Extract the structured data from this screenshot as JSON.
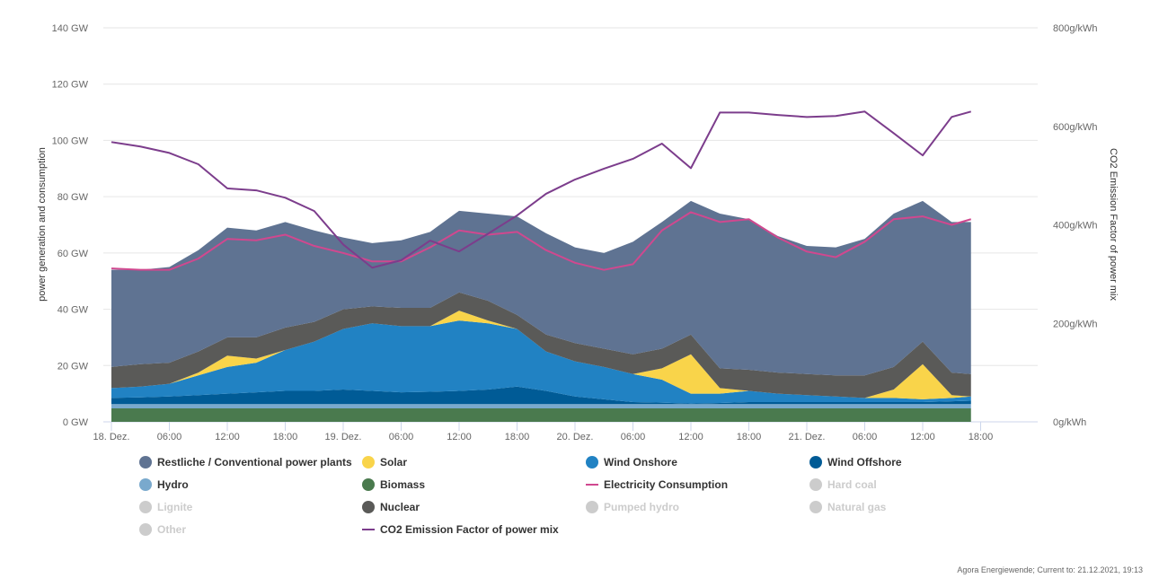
{
  "chart_data": {
    "type": "area",
    "stacked": true,
    "xlabel": "",
    "ylabel": "power generation and consumption",
    "y2label": "CO2 Emission Factor of power mix",
    "ylim": [
      0,
      140
    ],
    "y2lim": [
      0,
      800
    ],
    "grid": true,
    "legend_position": "bottom",
    "y_ticks": [
      "0 GW",
      "20 GW",
      "40 GW",
      "60 GW",
      "80 GW",
      "100 GW",
      "120 GW",
      "140 GW"
    ],
    "y2_ticks": [
      "0g/kWh",
      "200g/kWh",
      "400g/kWh",
      "600g/kWh",
      "800g/kWh"
    ],
    "x_ticks": [
      "18. Dez.",
      "06:00",
      "12:00",
      "18:00",
      "19. Dez.",
      "06:00",
      "12:00",
      "18:00",
      "20. Dez.",
      "06:00",
      "12:00",
      "18:00",
      "21. Dez.",
      "06:00",
      "12:00",
      "18:00"
    ],
    "x_hours": [
      0,
      3,
      6,
      9,
      12,
      15,
      18,
      21,
      24,
      27,
      30,
      33,
      36,
      39,
      42,
      45,
      48,
      51,
      54,
      57,
      60,
      63,
      66,
      69,
      72,
      75,
      78,
      81,
      84,
      87,
      89
    ],
    "series": [
      {
        "name": "Biomass",
        "color": "#4a7a4e",
        "values": [
          4.8,
          4.8,
          4.8,
          4.8,
          4.8,
          4.8,
          4.8,
          4.8,
          4.8,
          4.8,
          4.8,
          4.8,
          4.8,
          4.8,
          4.8,
          4.8,
          4.8,
          4.8,
          4.8,
          4.8,
          4.8,
          4.8,
          4.8,
          4.8,
          4.8,
          4.8,
          4.8,
          4.8,
          4.8,
          4.8,
          4.8
        ]
      },
      {
        "name": "Hydro",
        "color": "#79a9cd",
        "values": [
          1.5,
          1.5,
          1.5,
          1.5,
          1.5,
          1.5,
          1.5,
          1.5,
          1.5,
          1.5,
          1.5,
          1.5,
          1.5,
          1.5,
          1.5,
          1.5,
          1.5,
          1.5,
          1.5,
          1.5,
          1.5,
          1.5,
          1.5,
          1.5,
          1.5,
          1.5,
          1.5,
          1.5,
          1.5,
          1.5,
          1.5
        ]
      },
      {
        "name": "Wind Offshore",
        "color": "#005b96",
        "values": [
          2.2,
          2.4,
          2.7,
          3.2,
          3.7,
          4.2,
          4.7,
          4.7,
          5.2,
          4.7,
          4.2,
          4.4,
          4.7,
          5.2,
          6.2,
          4.7,
          2.7,
          1.7,
          0.7,
          0.5,
          0.2,
          0.4,
          0.7,
          0.7,
          0.7,
          0.7,
          0.7,
          0.7,
          0.7,
          1.0,
          1.2
        ]
      },
      {
        "name": "Wind Onshore",
        "color": "#2182c3",
        "values": [
          3.5,
          3.8,
          4.5,
          7.0,
          9.5,
          10.5,
          14.5,
          17.5,
          21.5,
          24,
          23.5,
          23.3,
          25,
          23.5,
          20.5,
          14,
          12.5,
          11.5,
          10,
          8.2,
          3.5,
          3.3,
          4,
          3,
          2.5,
          2,
          1.5,
          1.5,
          1,
          1.2,
          1.5
        ]
      },
      {
        "name": "Solar",
        "color": "#f9d44a",
        "values": [
          0,
          0,
          0,
          1,
          4,
          1.5,
          0,
          0,
          0,
          0,
          0,
          0,
          3.5,
          1,
          0,
          0,
          0,
          0,
          0,
          4,
          14,
          2,
          0,
          0,
          0,
          0,
          0,
          3,
          12.5,
          1,
          0
        ]
      },
      {
        "name": "Nuclear",
        "color": "#5a5a58",
        "values": [
          7.5,
          8,
          7.5,
          7.5,
          6.5,
          7.5,
          8,
          7,
          7,
          6,
          6.5,
          6.5,
          6.5,
          7,
          5,
          6,
          6.5,
          6.5,
          7,
          7,
          7,
          7,
          7.5,
          7.5,
          7.5,
          7.5,
          8,
          8,
          8,
          8,
          8
        ]
      },
      {
        "name": "Restliche / Conventional power plants",
        "color": "#5f7392",
        "values": [
          34.5,
          33.5,
          34,
          36,
          39,
          38,
          37.5,
          32.5,
          25.5,
          22.5,
          24,
          27,
          29,
          31,
          35,
          36,
          34,
          34,
          40,
          45,
          47.5,
          55,
          53.5,
          48.5,
          45.5,
          45.5,
          48.5,
          54.5,
          50,
          53.5,
          54
        ]
      }
    ],
    "lines": [
      {
        "name": "Electricity Consumption",
        "color": "#d0488f",
        "axis": "left",
        "values": [
          54.5,
          54,
          54,
          58,
          65,
          64.5,
          66.5,
          62.5,
          60,
          57,
          57,
          62,
          68,
          66.5,
          67.5,
          61,
          56.5,
          54,
          56,
          68,
          74.5,
          71,
          72,
          65.5,
          60.5,
          58.5,
          64,
          72,
          73,
          70,
          72
        ]
      },
      {
        "name": "CO2 Emission Factor of power mix",
        "color": "#7c3d8c",
        "axis": "right",
        "values": [
          568,
          559,
          546,
          523,
          474,
          470,
          455,
          428,
          360,
          313,
          328,
          368,
          346,
          382,
          419,
          463,
          492,
          514,
          534,
          565,
          515,
          628,
          628,
          623,
          619,
          621,
          630,
          586,
          541,
          619,
          630
        ]
      }
    ]
  },
  "legend": [
    {
      "label": "Restliche / Conventional power plants",
      "color": "#5f7392",
      "kind": "dot",
      "active": true
    },
    {
      "label": "Solar",
      "color": "#f9d44a",
      "kind": "dot",
      "active": true
    },
    {
      "label": "Wind Onshore",
      "color": "#2182c3",
      "kind": "dot",
      "active": true
    },
    {
      "label": "Wind Offshore",
      "color": "#005b96",
      "kind": "dot",
      "active": true
    },
    {
      "label": "Hydro",
      "color": "#79a9cd",
      "kind": "dot",
      "active": true
    },
    {
      "label": "Biomass",
      "color": "#4a7a4e",
      "kind": "dot",
      "active": true
    },
    {
      "label": "Electricity Consumption",
      "color": "#d0488f",
      "kind": "line",
      "active": true
    },
    {
      "label": "Hard coal",
      "color": "#cccccc",
      "kind": "dot",
      "active": false
    },
    {
      "label": "Lignite",
      "color": "#cccccc",
      "kind": "dot",
      "active": false
    },
    {
      "label": "Nuclear",
      "color": "#5a5a58",
      "kind": "dot",
      "active": true
    },
    {
      "label": "Pumped hydro",
      "color": "#cccccc",
      "kind": "dot",
      "active": false
    },
    {
      "label": "Natural gas",
      "color": "#cccccc",
      "kind": "dot",
      "active": false
    },
    {
      "label": "Other",
      "color": "#cccccc",
      "kind": "dot",
      "active": false
    },
    {
      "label": "CO2 Emission Factor of power mix",
      "color": "#7c3d8c",
      "kind": "line",
      "active": true
    }
  ],
  "footer": "Agora Energiewende; Current to: 21.12.2021, 19:13"
}
